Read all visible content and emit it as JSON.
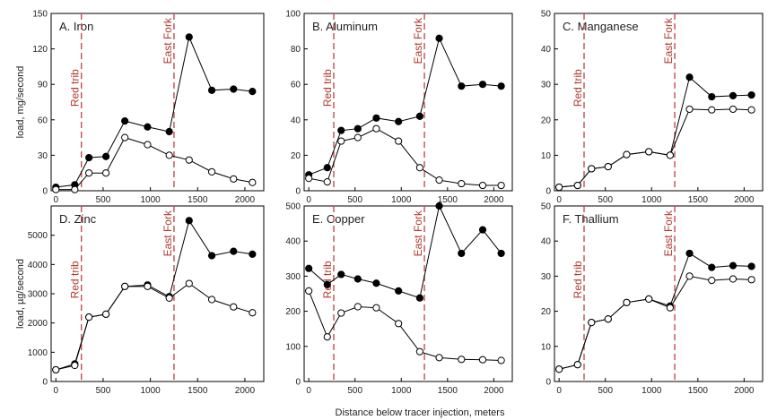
{
  "figure": {
    "xlabel": "Distance below tracer injection, meters",
    "colors": {
      "ref_line": "#c0504d",
      "ref_text": "#b03a2e",
      "axis": "#000000"
    }
  },
  "chart_data": [
    {
      "type": "line",
      "title": "A. Iron",
      "ylabel": "load, mg/second",
      "xlim": [
        -50,
        2200
      ],
      "ylim": [
        0,
        150
      ],
      "xticks": [
        0,
        500,
        1000,
        1500,
        2000
      ],
      "yticks": [
        0,
        30,
        60,
        90,
        120,
        150
      ],
      "x": [
        0,
        200,
        350,
        530,
        730,
        970,
        1200,
        1410,
        1650,
        1880,
        2080
      ],
      "series": [
        {
          "marker": "filled-circle",
          "values": [
            3,
            5,
            28,
            29,
            59,
            54,
            50,
            130,
            85,
            86,
            84
          ]
        },
        {
          "marker": "open-circle",
          "values": [
            1,
            1,
            15,
            15,
            45,
            39,
            30,
            26,
            16,
            10,
            7
          ]
        }
      ],
      "annotations": [
        {
          "x": 270,
          "text": "Red trib"
        },
        {
          "x": 1250,
          "text": "East Fork"
        }
      ]
    },
    {
      "type": "line",
      "title": "B. Aluminum",
      "ylabel": "",
      "xlim": [
        -50,
        2200
      ],
      "ylim": [
        0,
        100
      ],
      "xticks": [
        0,
        500,
        1000,
        1500,
        2000
      ],
      "yticks": [
        0,
        20,
        40,
        60,
        80,
        100
      ],
      "x": [
        0,
        200,
        350,
        530,
        730,
        970,
        1200,
        1410,
        1650,
        1880,
        2080
      ],
      "series": [
        {
          "marker": "filled-circle",
          "values": [
            9,
            13,
            34,
            35,
            41,
            39,
            42,
            86,
            59,
            60,
            59
          ]
        },
        {
          "marker": "open-circle",
          "values": [
            7,
            5,
            28,
            30,
            35,
            28,
            13,
            6,
            4,
            3,
            3
          ]
        }
      ],
      "annotations": [
        {
          "x": 270,
          "text": "Red trib"
        },
        {
          "x": 1250,
          "text": "East Fork"
        }
      ]
    },
    {
      "type": "line",
      "title": "C. Manganese",
      "ylabel": "",
      "xlim": [
        -50,
        2200
      ],
      "ylim": [
        0,
        50
      ],
      "xticks": [
        0,
        500,
        1000,
        1500,
        2000
      ],
      "yticks": [
        0,
        10,
        20,
        30,
        40,
        50
      ],
      "x": [
        0,
        200,
        350,
        530,
        730,
        970,
        1200,
        1410,
        1650,
        1880,
        2080
      ],
      "series": [
        {
          "marker": "filled-circle",
          "values": [
            1,
            1.5,
            6.2,
            6.8,
            10.2,
            11,
            10,
            32,
            26.5,
            26.8,
            27
          ]
        },
        {
          "marker": "open-circle",
          "values": [
            1,
            1.5,
            6.2,
            6.8,
            10.2,
            11,
            10,
            23,
            22.8,
            23,
            22.8
          ]
        }
      ],
      "annotations": [
        {
          "x": 270,
          "text": "Red trib"
        },
        {
          "x": 1250,
          "text": "East Fork"
        }
      ]
    },
    {
      "type": "line",
      "title": "D. Zinc",
      "ylabel": "load, µg/second",
      "xlim": [
        -50,
        2200
      ],
      "ylim": [
        0,
        6000
      ],
      "xticks": [
        0,
        500,
        1000,
        1500,
        2000
      ],
      "yticks": [
        0,
        1000,
        2000,
        3000,
        4000,
        5000
      ],
      "x": [
        0,
        200,
        350,
        530,
        730,
        970,
        1200,
        1410,
        1650,
        1880,
        2080
      ],
      "series": [
        {
          "marker": "filled-circle",
          "values": [
            400,
            600,
            2200,
            2300,
            3250,
            3300,
            2900,
            5500,
            4300,
            4450,
            4350
          ]
        },
        {
          "marker": "open-circle",
          "values": [
            400,
            550,
            2200,
            2300,
            3250,
            3250,
            2850,
            3350,
            2800,
            2550,
            2350
          ]
        }
      ],
      "annotations": [
        {
          "x": 270,
          "text": "Red trib"
        },
        {
          "x": 1250,
          "text": "East Fork"
        }
      ]
    },
    {
      "type": "line",
      "title": "E. Copper",
      "ylabel": "",
      "xlim": [
        -50,
        2200
      ],
      "ylim": [
        0,
        500
      ],
      "xticks": [
        0,
        500,
        1000,
        1500,
        2000
      ],
      "yticks": [
        0,
        100,
        200,
        300,
        400,
        500
      ],
      "x": [
        0,
        200,
        350,
        530,
        730,
        970,
        1200,
        1410,
        1650,
        1880,
        2080
      ],
      "series": [
        {
          "marker": "filled-circle",
          "values": [
            322,
            276,
            305,
            292,
            280,
            258,
            238,
            500,
            365,
            432,
            365
          ]
        },
        {
          "marker": "open-circle",
          "values": [
            258,
            127,
            195,
            213,
            210,
            165,
            85,
            68,
            63,
            62,
            60
          ]
        }
      ],
      "annotations": [
        {
          "x": 270,
          "text": "Red trib"
        },
        {
          "x": 1250,
          "text": "East Fork"
        }
      ]
    },
    {
      "type": "line",
      "title": "F. Thallium",
      "ylabel": "",
      "xlim": [
        -50,
        2200
      ],
      "ylim": [
        0,
        50
      ],
      "xticks": [
        0,
        500,
        1000,
        1500,
        2000
      ],
      "yticks": [
        0,
        10,
        20,
        30,
        40,
        50
      ],
      "x": [
        0,
        200,
        350,
        530,
        730,
        970,
        1200,
        1410,
        1650,
        1880,
        2080
      ],
      "series": [
        {
          "marker": "filled-circle",
          "values": [
            3.5,
            4.8,
            16.8,
            17.8,
            22.5,
            23.5,
            21.5,
            36.5,
            32.5,
            33,
            32.8
          ]
        },
        {
          "marker": "open-circle",
          "values": [
            3.5,
            4.8,
            16.8,
            17.8,
            22.5,
            23.5,
            21,
            30,
            28.8,
            29.2,
            29
          ]
        }
      ],
      "annotations": [
        {
          "x": 270,
          "text": "Red trib"
        },
        {
          "x": 1250,
          "text": "East Fork"
        }
      ]
    }
  ]
}
